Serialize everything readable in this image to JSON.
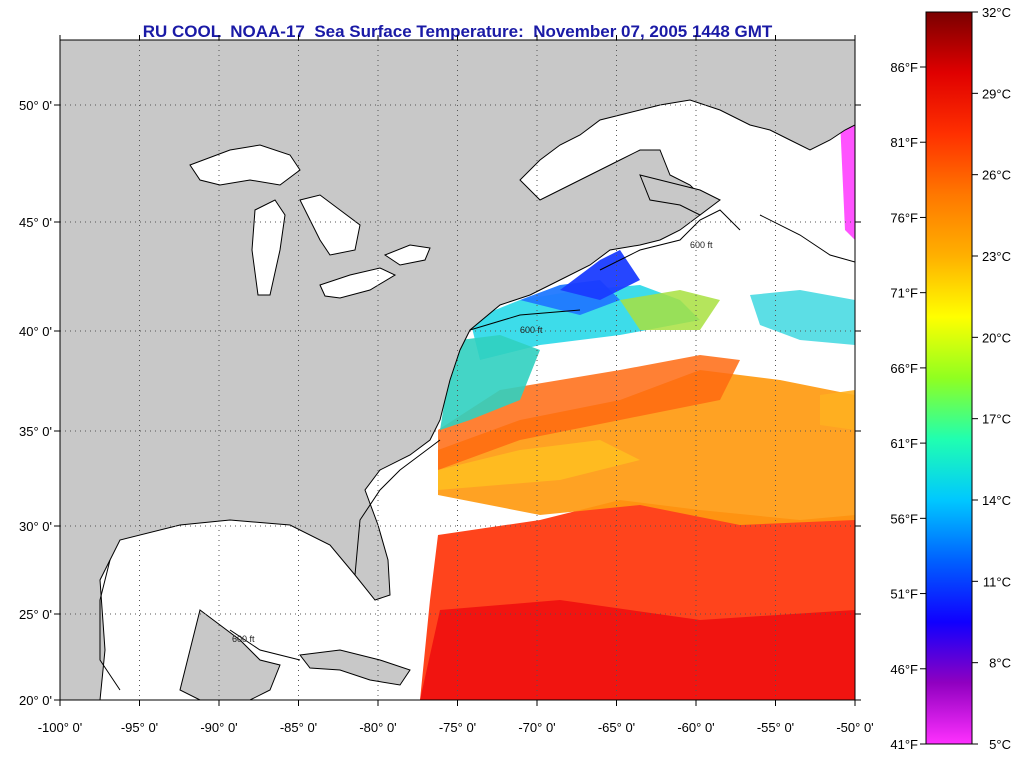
{
  "title": "RU COOL  NOAA-17  Sea Surface Temperature:  November 07, 2005 1448 GMT",
  "map": {
    "lon_labels": [
      "-100° 0'",
      "-95° 0'",
      "-90° 0'",
      "-85° 0'",
      "-80° 0'",
      "-75° 0'",
      "-70° 0'",
      "-65° 0'",
      "-60° 0'",
      "-55° 0'",
      "-50° 0'"
    ],
    "lat_labels": [
      "50° 0'",
      "45° 0'",
      "40° 0'",
      "35° 0'",
      "30° 0'",
      "25° 0'",
      "20° 0'"
    ],
    "contour_label": "600 ft",
    "colors": {
      "land": "#c8c8c8",
      "frame": "#000000",
      "grid": "#555555"
    }
  },
  "colorbar": {
    "celsius": [
      "32°C",
      "29°C",
      "26°C",
      "23°C",
      "20°C",
      "17°C",
      "14°C",
      "11°C",
      "8°C",
      "5°C"
    ],
    "fahrenheit": [
      "86°F",
      "81°F",
      "76°F",
      "71°F",
      "66°F",
      "61°F",
      "56°F",
      "51°F",
      "46°F",
      "41°F"
    ],
    "stops": [
      "#7a0000",
      "#e00000",
      "#ff3000",
      "#ff7800",
      "#ffb000",
      "#ffff00",
      "#90ff20",
      "#20ffb0",
      "#00c8ff",
      "#0060ff",
      "#1000ff",
      "#9000c0",
      "#ff30ff"
    ]
  }
}
